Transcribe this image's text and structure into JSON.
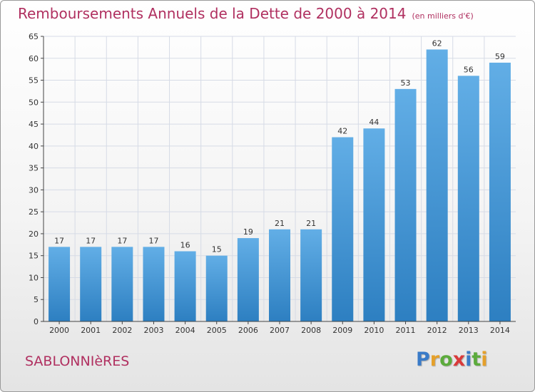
{
  "title": "Remboursements Annuels de la Dette de 2000 à 2014",
  "subtitle": "(en milliers d'€)",
  "commune": "SABLONNIèRES",
  "logo": {
    "letters": [
      "P",
      "r",
      "o",
      "x",
      "i",
      "t",
      "i"
    ],
    "colors": [
      "#3a7bc8",
      "#e5a02a",
      "#5cab3c",
      "#d93a3a",
      "#3a7bc8",
      "#5cab3c",
      "#e5a02a"
    ]
  },
  "colors": {
    "title": "#b03060",
    "bar_light": "#62aee6",
    "bar_dark": "#2d7fc1",
    "grid": "#d6dbe6",
    "axis": "#444444"
  },
  "chart_data": {
    "type": "bar",
    "categories": [
      "2000",
      "2001",
      "2002",
      "2003",
      "2004",
      "2005",
      "2006",
      "2007",
      "2008",
      "2009",
      "2010",
      "2011",
      "2012",
      "2013",
      "2014"
    ],
    "values": [
      17,
      17,
      17,
      17,
      16,
      15,
      19,
      21,
      21,
      42,
      44,
      53,
      62,
      56,
      59
    ],
    "ylim": [
      0,
      65
    ],
    "yticks": [
      0,
      5,
      10,
      15,
      20,
      25,
      30,
      35,
      40,
      45,
      50,
      55,
      60,
      65
    ],
    "grid": true,
    "xlabel": "",
    "ylabel": ""
  }
}
